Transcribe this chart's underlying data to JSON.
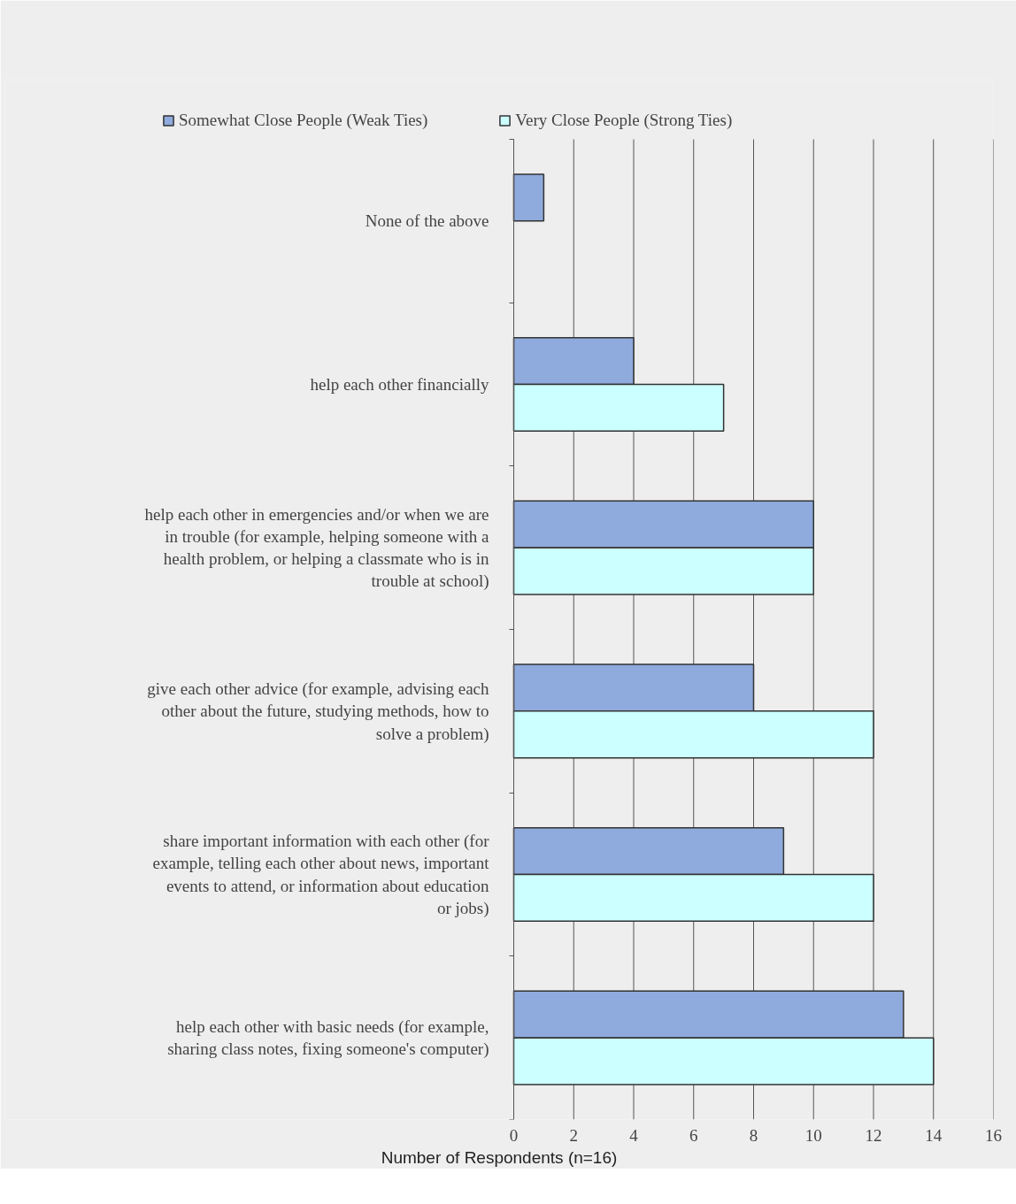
{
  "chart_data": {
    "type": "bar",
    "orientation": "horizontal",
    "categories": [
      "None of the above",
      "help each other financially",
      "help each other in emergencies and/or when we are in trouble (for example, helping someone with a health problem, or helping a classmate who is in trouble at school)",
      "give each other advice (for example, advising each other about the future, studying methods, how to solve a problem)",
      "share important information with each other (for example, telling each other about news, important events to attend, or information about education or jobs)",
      "help each other with basic needs (for example, sharing class notes, fixing someone's computer)"
    ],
    "series": [
      {
        "name": "Somewhat Close People (Weak Ties)",
        "color": "#8faadc",
        "values": [
          1,
          4,
          10,
          8,
          9,
          13
        ]
      },
      {
        "name": "Very Close People (Strong Ties)",
        "color": "#ccffff",
        "values": [
          null,
          7,
          10,
          12,
          12,
          14
        ]
      }
    ],
    "xlabel": "Number of Respondents (n=16)",
    "xlim": [
      0,
      16
    ],
    "xticks": [
      0,
      2,
      4,
      6,
      8,
      10,
      12,
      14,
      16
    ],
    "grid": "x",
    "legend": "top"
  }
}
